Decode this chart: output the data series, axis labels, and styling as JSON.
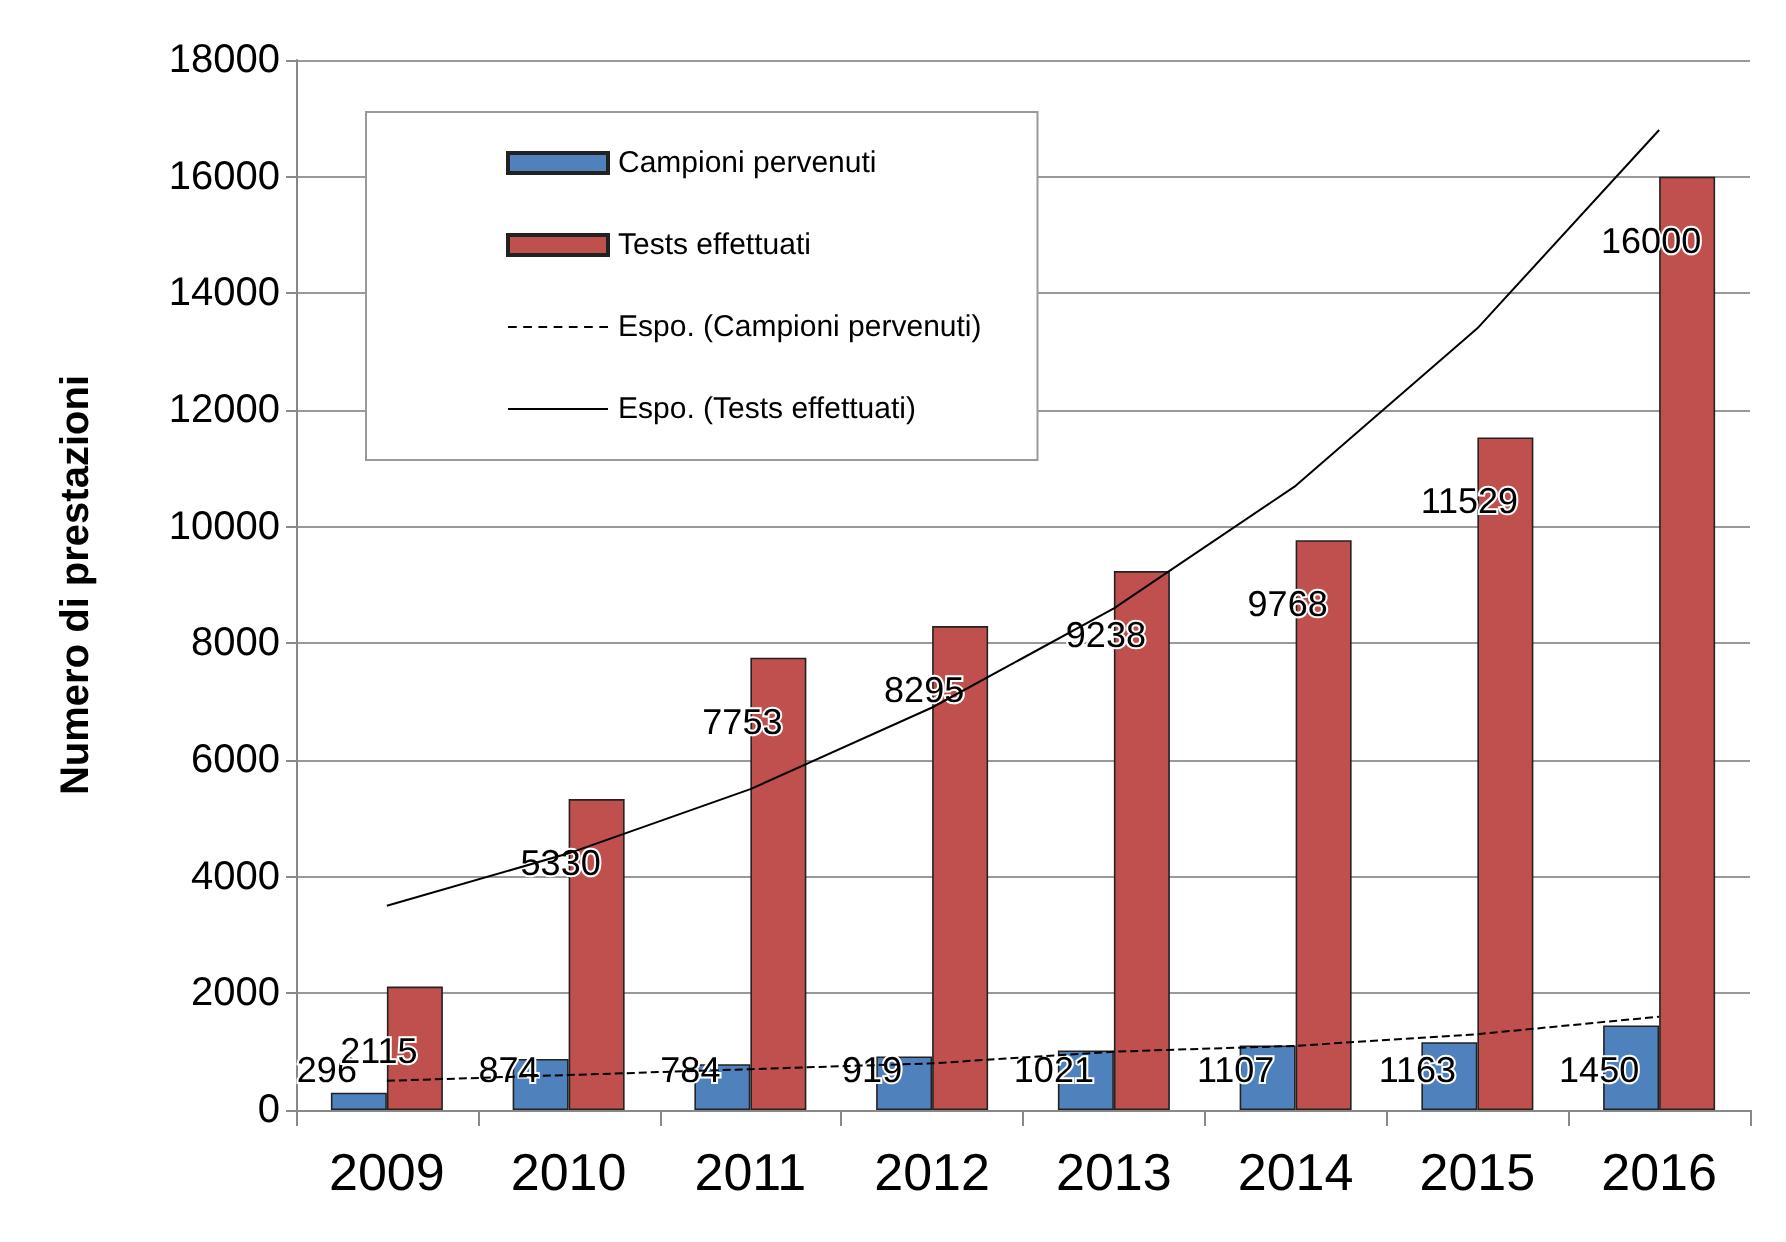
{
  "chart_data": {
    "type": "bar",
    "ylabel": "Numero di prestazioni",
    "categories": [
      "2009",
      "2010",
      "2011",
      "2012",
      "2013",
      "2014",
      "2015",
      "2016"
    ],
    "series": [
      {
        "name": "Campioni pervenuti",
        "color": "#4f81bd",
        "values": [
          296,
          874,
          784,
          919,
          1021,
          1107,
          1163,
          1450
        ],
        "value_labels": [
          "296",
          "874",
          "784",
          "919",
          "1021",
          "1107",
          "1163",
          "1450"
        ]
      },
      {
        "name": "Tests effettuati",
        "color": "#c0504d",
        "values": [
          2115,
          5330,
          7753,
          8295,
          9238,
          9768,
          11529,
          16000
        ],
        "value_labels": [
          "2115",
          "5330",
          "7753",
          "8295",
          "9238",
          "9768",
          "11529",
          "16000"
        ]
      },
      {
        "name": "Espo. (Campioni pervenuti)",
        "type": "line",
        "color": "#000000",
        "line_style": "dashed",
        "values": [
          500,
          600,
          700,
          800,
          1000,
          1100,
          1300,
          1600
        ]
      },
      {
        "name": "Espo. (Tests effettuati)",
        "type": "line",
        "color": "#000000",
        "line_style": "solid",
        "values": [
          3500,
          4400,
          5500,
          6900,
          8600,
          10700,
          13400,
          16800
        ]
      }
    ],
    "ylim": [
      0,
      18000
    ],
    "yticks": [
      0,
      2000,
      4000,
      6000,
      8000,
      10000,
      12000,
      14000,
      16000,
      18000
    ],
    "grid": "y",
    "legend": "top left",
    "marker": "none"
  }
}
